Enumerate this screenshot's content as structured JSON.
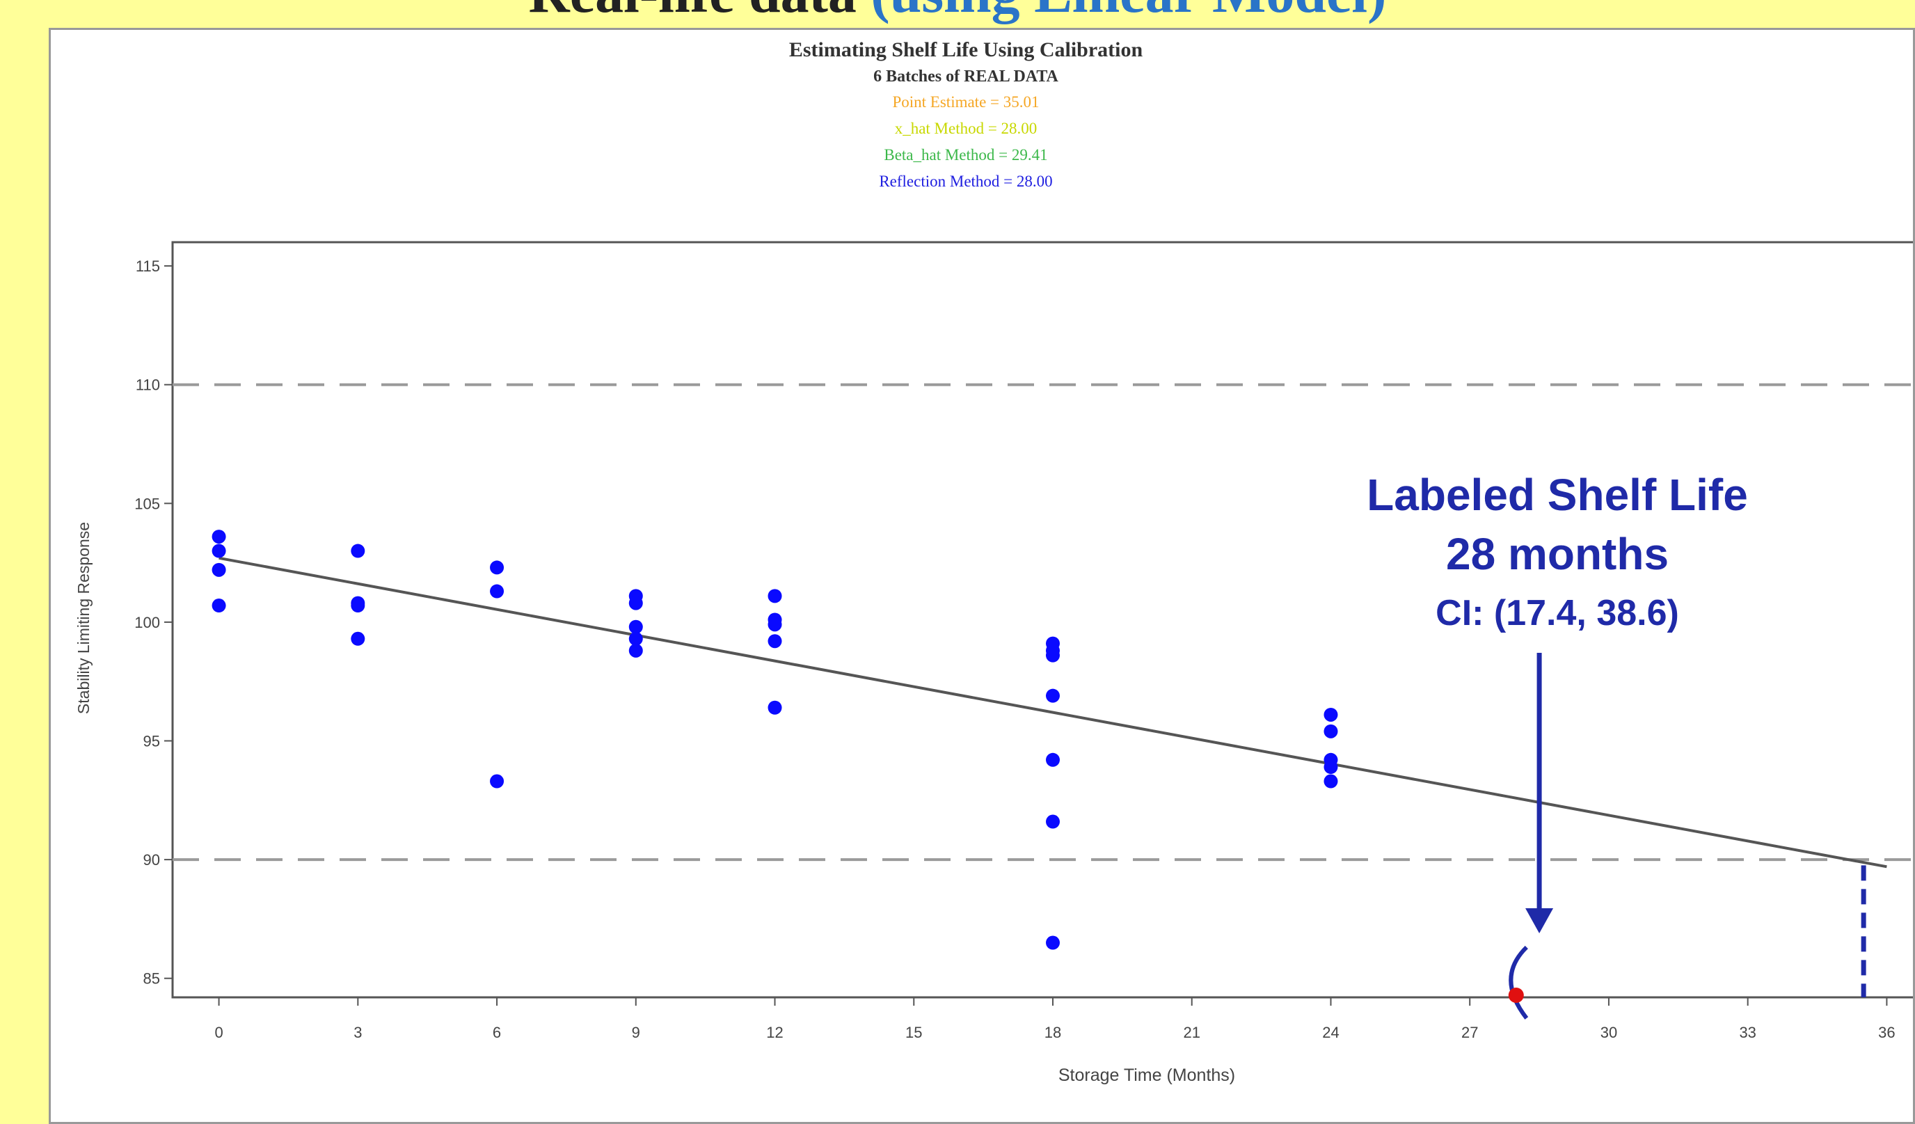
{
  "slide": {
    "title_part1": "Real-life data",
    "title_part2": "(using Linear Model)"
  },
  "chart_data": {
    "type": "scatter",
    "title": "Estimating Shelf Life Using Calibration",
    "subtitle": "6 Batches of REAL DATA",
    "estimates": [
      {
        "label": "Point Estimate    = 35.01",
        "color": "#f5a623"
      },
      {
        "label": "x_hat Method     = 28.00",
        "color": "#c8d800"
      },
      {
        "label": "Beta_hat Method  = 29.41",
        "color": "#3cb84a"
      },
      {
        "label": "Reflection Method = 28.00",
        "color": "#2020e0"
      }
    ],
    "xlabel": "Storage Time (Months)",
    "ylabel": "Stability Limiting Response",
    "xlim": [
      -1,
      37
    ],
    "ylim": [
      84.2,
      116
    ],
    "xticks": [
      0,
      3,
      6,
      9,
      12,
      15,
      18,
      21,
      24,
      27,
      30,
      33,
      36
    ],
    "yticks": [
      85,
      90,
      95,
      100,
      105,
      110,
      115
    ],
    "spec_limits": [
      110,
      90
    ],
    "series": [
      {
        "color": "#0a0aff",
        "points": [
          [
            0,
            103.6
          ],
          [
            0,
            103.0
          ],
          [
            0,
            102.2
          ],
          [
            0,
            100.7
          ],
          [
            3,
            103.0
          ],
          [
            3,
            100.8
          ],
          [
            3,
            100.7
          ],
          [
            3,
            99.3
          ],
          [
            6,
            102.3
          ],
          [
            6,
            101.3
          ],
          [
            6,
            93.3
          ],
          [
            9,
            101.1
          ],
          [
            9,
            100.8
          ],
          [
            9,
            99.8
          ],
          [
            9,
            99.3
          ],
          [
            9,
            98.8
          ],
          [
            12,
            101.1
          ],
          [
            12,
            100.1
          ],
          [
            12,
            99.9
          ],
          [
            12,
            99.2
          ],
          [
            12,
            96.4
          ],
          [
            18,
            99.1
          ],
          [
            18,
            98.8
          ],
          [
            18,
            98.6
          ],
          [
            18,
            96.9
          ],
          [
            18,
            94.2
          ],
          [
            18,
            91.6
          ],
          [
            18,
            86.5
          ],
          [
            24,
            96.1
          ],
          [
            24,
            95.4
          ],
          [
            24,
            94.2
          ],
          [
            24,
            93.9
          ],
          [
            24,
            93.3
          ]
        ]
      }
    ],
    "regression_line": {
      "x": [
        0,
        36
      ],
      "y": [
        102.7,
        89.7
      ],
      "color": "#555555"
    },
    "annotation": {
      "line1": "Labeled Shelf Life",
      "line2": "28 months",
      "line3": "CI: (17.4, 38.6)",
      "color": "#1f2aa8",
      "arrow_x": 28.5,
      "estimate_x": 28.0,
      "estimate_marker_color": "#e01010",
      "bracket_x": 28.0,
      "dashed_x": 35.5
    }
  }
}
